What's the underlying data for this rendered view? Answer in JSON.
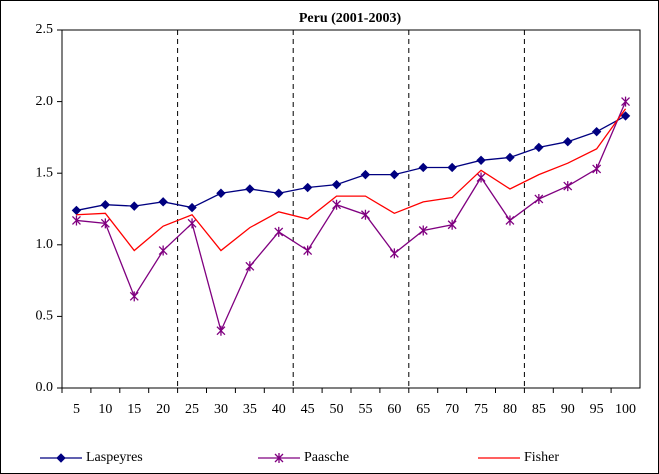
{
  "chart_data": {
    "type": "line",
    "title": "Peru (2001-2003)",
    "categories": [
      "5",
      "10",
      "15",
      "20",
      "25",
      "30",
      "35",
      "40",
      "45",
      "50",
      "55",
      "60",
      "65",
      "70",
      "75",
      "80",
      "85",
      "90",
      "95",
      "100"
    ],
    "series": [
      {
        "name": "Laspeyres",
        "color": "#000080",
        "marker": "diamond",
        "values": [
          1.24,
          1.28,
          1.27,
          1.3,
          1.26,
          1.36,
          1.39,
          1.36,
          1.4,
          1.42,
          1.49,
          1.49,
          1.54,
          1.54,
          1.59,
          1.61,
          1.68,
          1.72,
          1.79,
          1.9
        ]
      },
      {
        "name": "Paasche",
        "color": "#800080",
        "marker": "asterisk",
        "values": [
          1.17,
          1.15,
          0.64,
          0.96,
          1.15,
          0.4,
          0.85,
          1.09,
          0.96,
          1.28,
          1.21,
          0.94,
          1.1,
          1.14,
          1.47,
          1.17,
          1.32,
          1.41,
          1.53,
          2.0
        ]
      },
      {
        "name": "Fisher",
        "color": "#ff0000",
        "marker": "none",
        "values": [
          1.21,
          1.22,
          0.96,
          1.13,
          1.21,
          0.96,
          1.12,
          1.23,
          1.18,
          1.34,
          1.34,
          1.22,
          1.3,
          1.33,
          1.52,
          1.39,
          1.49,
          1.57,
          1.67,
          1.95
        ]
      }
    ],
    "ylim": [
      0,
      2.5
    ],
    "yticks": [
      {
        "value": 0,
        "label": "0.0"
      },
      {
        "value": 0.5,
        "label": "0.5"
      },
      {
        "value": 1,
        "label": "1.0"
      },
      {
        "value": 1.5,
        "label": "1.5"
      },
      {
        "value": 2,
        "label": "2.0"
      },
      {
        "value": 2.5,
        "label": "2.5"
      }
    ],
    "grid": false,
    "legend": "bottom"
  }
}
